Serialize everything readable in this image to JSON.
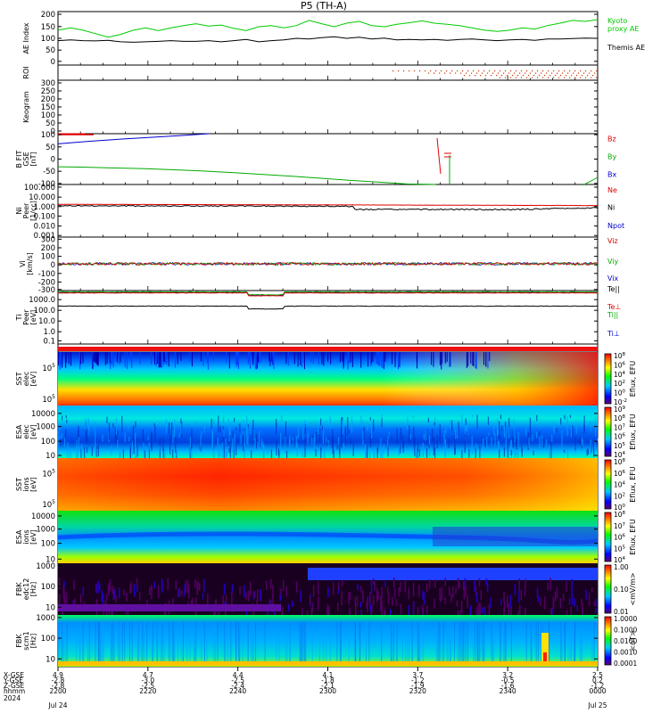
{
  "title": "P5 (TH-A)",
  "colors": {
    "kyoto": "#00cc00",
    "themis": "#000000",
    "red": "#dd0000",
    "green": "#00aa00",
    "blue": "#0000cc",
    "roi": "#cc3300"
  },
  "chart_data": [
    {
      "type": "line",
      "panel": "ae",
      "ylabel": "AE Index",
      "yticks": [
        "200",
        "150",
        "100",
        "50",
        "0"
      ],
      "ylim": [
        -20,
        210
      ],
      "series": [
        {
          "name": "Kyoto\nproxy AE",
          "color": "#00cc00",
          "values": [
            130,
            140,
            130,
            115,
            100,
            112,
            130,
            140,
            128,
            140,
            150,
            158,
            148,
            152,
            138,
            128,
            145,
            150,
            140,
            150,
            172,
            158,
            145,
            160,
            168,
            150,
            145,
            155,
            162,
            170,
            160,
            155,
            150,
            140,
            130,
            125,
            130,
            140,
            135,
            150,
            160,
            172,
            168,
            175
          ]
        },
        {
          "name": "Themis AE",
          "color": "#000000",
          "values": [
            85,
            88,
            85,
            84,
            86,
            80,
            78,
            80,
            82,
            85,
            82,
            82,
            85,
            80,
            85,
            90,
            80,
            85,
            88,
            95,
            92,
            98,
            102,
            95,
            100,
            92,
            96,
            88,
            90,
            88,
            90,
            86,
            90,
            92,
            88,
            85,
            88,
            90,
            86,
            92,
            92,
            94,
            96,
            95
          ]
        }
      ]
    },
    {
      "type": "scatter",
      "panel": "roi",
      "ylabel": "ROI",
      "note_positions": "dots"
    },
    {
      "type": "heatmap",
      "panel": "keogram",
      "ylabel": "Keogram",
      "yticks": [
        "300",
        "250",
        "200",
        "150",
        "100",
        "50",
        "0"
      ]
    },
    {
      "type": "line",
      "panel": "b",
      "ylabel": "B FIT\nGSE\n[nT]",
      "yticks": [
        "100",
        "50",
        "0",
        "-50",
        "-100"
      ],
      "ylim": [
        -100,
        100
      ],
      "series": [
        {
          "name": "Bz",
          "color": "#dd0000",
          "values": [
            100,
            100,
            100
          ]
        },
        {
          "name": "By",
          "color": "#00aa00",
          "values": [
            -30,
            -32,
            -35,
            -38,
            -42,
            -47,
            -53,
            -60,
            -67,
            -75,
            -83,
            -90,
            -98,
            -100
          ]
        },
        {
          "name": "Bx",
          "color": "#0000cc",
          "values": [
            60,
            70,
            78,
            85,
            92,
            100
          ]
        }
      ]
    },
    {
      "type": "line",
      "panel": "n",
      "ylabel": "Ni\nPeer\n[1/cc]",
      "yticks": [
        "100.000",
        "10.000",
        "1.000",
        "0.100",
        "0.010",
        "0.001"
      ],
      "series": [
        {
          "name": "Ne",
          "color": "#dd0000",
          "values": [
            1.4,
            1.2,
            1.1,
            1.0,
            1.0,
            1.0
          ]
        },
        {
          "name": "Ni",
          "color": "#000000",
          "values": [
            1.0,
            0.9,
            0.8,
            0.5,
            0.4,
            0.6
          ]
        },
        {
          "name": "Npot",
          "color": "#0000cc",
          "values": []
        }
      ]
    },
    {
      "type": "line",
      "panel": "v",
      "ylabel": "Vi\n[km/s]",
      "yticks": [
        "300",
        "200",
        "100",
        "0",
        "-100",
        "-200",
        "-300"
      ],
      "series": [
        {
          "name": "Viz",
          "color": "#dd0000",
          "values": [
            0
          ]
        },
        {
          "name": "Viy",
          "color": "#00aa00",
          "values": [
            0
          ]
        },
        {
          "name": "Vix",
          "color": "#0000cc",
          "values": [
            0
          ]
        }
      ]
    },
    {
      "type": "line",
      "panel": "t",
      "ylabel": "Ti\nPeer\n[eV]",
      "yticks": [
        "1000.0",
        "100.0",
        "10.0",
        "1.0",
        "0.1"
      ],
      "series": [
        {
          "name": "Te||",
          "color": "#000000",
          "values": [
            60,
            62,
            60,
            58
          ]
        },
        {
          "name": "Te⊥",
          "color": "#dd0000",
          "values": [
            700,
            650,
            500,
            600
          ]
        },
        {
          "name": "Ti||",
          "color": "#00aa00",
          "values": [
            800,
            700,
            600,
            700
          ]
        },
        {
          "name": "Ti⊥",
          "color": "#0000cc",
          "values": [
            650,
            620,
            480,
            560
          ]
        }
      ]
    },
    {
      "type": "heatmap",
      "panel": "sst_e",
      "ylabel": "SST\nelec\n[eV]",
      "cbar": "Eflux, EFU",
      "cticks": [
        "10^8",
        "10^6",
        "10^4",
        "10^2",
        "10^0",
        "10^-2"
      ]
    },
    {
      "type": "heatmap",
      "panel": "esa_e",
      "ylabel": "ESA\nelec\n[eV]",
      "cbar": "Eflux, EFU",
      "yticks": [
        "10000",
        "1000",
        "100",
        "10"
      ],
      "cticks": [
        "10^9",
        "10^8",
        "10^7",
        "10^6",
        "10^5",
        "10^4"
      ]
    },
    {
      "type": "heatmap",
      "panel": "sst_i",
      "ylabel": "SST\nions\n[eV]",
      "cbar": "Eflux, EFU",
      "cticks": [
        "10^8",
        "10^6",
        "10^4",
        "10^2",
        "10^0"
      ]
    },
    {
      "type": "heatmap",
      "panel": "esa_i",
      "ylabel": "ESA\nions\n[eV]",
      "cbar": "Eflux, EFU",
      "yticks": [
        "10000",
        "1000",
        "100",
        "10"
      ],
      "cticks": [
        "10^8",
        "10^7",
        "10^6",
        "10^5",
        "10^4"
      ]
    },
    {
      "type": "heatmap",
      "panel": "fbk_e",
      "ylabel": "FBK\nedc12\n[Hz]",
      "cbar": "<mV/m>",
      "yticks": [
        "1000",
        "100",
        "10"
      ],
      "cticks": [
        "1.00",
        "0.10",
        "0.01"
      ]
    },
    {
      "type": "heatmap",
      "panel": "fbk_b",
      "ylabel": "FBK\nscm1\n[Hz]",
      "cbar": "<nT>",
      "yticks": [
        "1000",
        "100",
        "10"
      ],
      "cticks": [
        "1.0000",
        "0.1000",
        "0.0100",
        "0.0010",
        "0.0001"
      ]
    }
  ],
  "ephemeris": {
    "row_labels": [
      "X-GSE",
      "Y-GSE",
      "Z-GSE",
      "hhmm",
      "2024"
    ],
    "columns": [
      {
        "x": "4.9",
        "y": "-2.8",
        "z": "-2.8",
        "t": "2200",
        "d": "Jul 24"
      },
      {
        "x": "4.7",
        "y": "-3.0",
        "z": "-2.5",
        "t": "2220",
        "d": ""
      },
      {
        "x": "4.4",
        "y": "-2.5",
        "z": "-2.4",
        "t": "2240",
        "d": ""
      },
      {
        "x": "4.1",
        "y": "-1.8",
        "z": "-2.1",
        "t": "2300",
        "d": ""
      },
      {
        "x": "3.7",
        "y": "-1.2",
        "z": "-1.9",
        "t": "2320",
        "d": ""
      },
      {
        "x": "3.2",
        "y": "-0.5",
        "z": "-1.6",
        "t": "2340",
        "d": ""
      },
      {
        "x": "2.5",
        "y": "0.2",
        "z": "-1.2",
        "t": "0000",
        "d": "Jul 25"
      }
    ]
  }
}
